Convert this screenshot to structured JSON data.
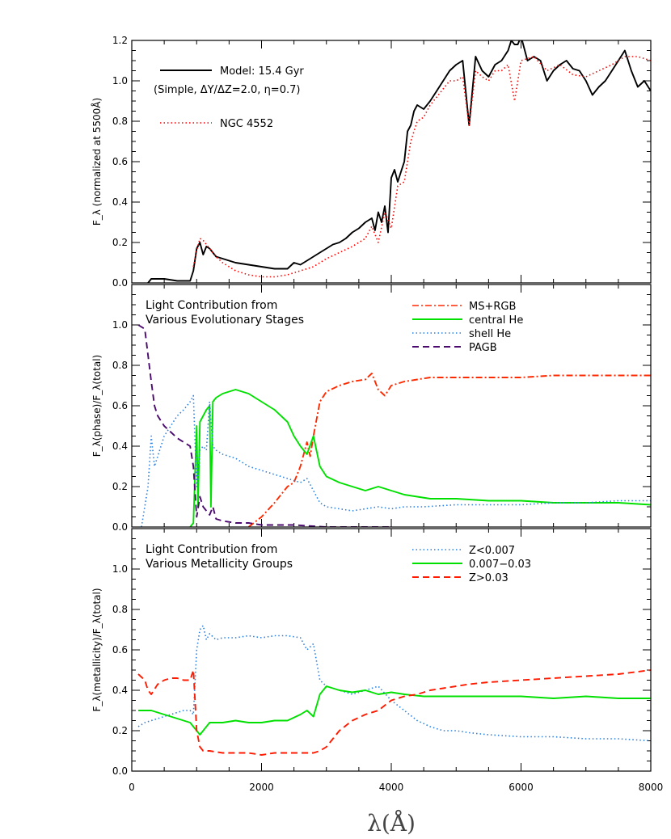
{
  "chart_data": [
    {
      "type": "line",
      "ylabel": "F_λ (normalized at 5500Å)",
      "xlim": [
        0,
        8000
      ],
      "ylim": [
        0,
        1.2
      ],
      "yticks": [
        "0.0",
        "0.2",
        "0.4",
        "0.6",
        "0.8",
        "1.0",
        "1.2"
      ],
      "legend_placement": "top-left",
      "legend_extra": "(Simple, ΔY/ΔZ=2.0, η=0.7)",
      "series": [
        {
          "name": "Model: 15.4 Gyr",
          "color": "#000000",
          "dash": "solid",
          "x": [
            250,
            300,
            500,
            700,
            900,
            950,
            1000,
            1050,
            1100,
            1150,
            1200,
            1250,
            1300,
            1400,
            1600,
            1800,
            2000,
            2200,
            2400,
            2500,
            2600,
            2700,
            2800,
            2900,
            3000,
            3100,
            3200,
            3300,
            3400,
            3500,
            3600,
            3700,
            3750,
            3800,
            3850,
            3900,
            3950,
            4000,
            4050,
            4100,
            4150,
            4200,
            4250,
            4300,
            4350,
            4400,
            4500,
            4600,
            4700,
            4800,
            4900,
            5000,
            5100,
            5200,
            5300,
            5400,
            5500,
            5600,
            5700,
            5800,
            5850,
            5900,
            5950,
            6000,
            6100,
            6200,
            6300,
            6400,
            6500,
            6600,
            6700,
            6800,
            6900,
            7000,
            7100,
            7200,
            7300,
            7400,
            7500,
            7600,
            7700,
            7800,
            7900,
            8000
          ],
          "y": [
            0.0,
            0.02,
            0.02,
            0.01,
            0.01,
            0.06,
            0.17,
            0.2,
            0.14,
            0.18,
            0.17,
            0.15,
            0.13,
            0.12,
            0.1,
            0.09,
            0.08,
            0.07,
            0.07,
            0.1,
            0.09,
            0.11,
            0.13,
            0.15,
            0.17,
            0.19,
            0.2,
            0.22,
            0.25,
            0.27,
            0.3,
            0.32,
            0.26,
            0.35,
            0.3,
            0.38,
            0.25,
            0.52,
            0.56,
            0.5,
            0.55,
            0.6,
            0.75,
            0.78,
            0.85,
            0.88,
            0.86,
            0.9,
            0.95,
            1.0,
            1.05,
            1.08,
            1.1,
            0.78,
            1.12,
            1.05,
            1.02,
            1.08,
            1.1,
            1.15,
            1.2,
            1.18,
            1.18,
            1.22,
            1.1,
            1.12,
            1.1,
            1.0,
            1.05,
            1.08,
            1.1,
            1.06,
            1.05,
            1.0,
            0.93,
            0.97,
            1.0,
            1.05,
            1.1,
            1.15,
            1.05,
            0.97,
            1.0,
            0.95
          ]
        },
        {
          "name": "NGC 4552",
          "color": "#ff0000",
          "dash": "dotted",
          "x": [
            950,
            1000,
            1050,
            1100,
            1150,
            1200,
            1300,
            1400,
            1600,
            1800,
            2000,
            2200,
            2400,
            2600,
            2800,
            3000,
            3200,
            3400,
            3600,
            3700,
            3800,
            3900,
            4000,
            4100,
            4200,
            4300,
            4400,
            4500,
            4600,
            4700,
            4800,
            4900,
            5000,
            5100,
            5200,
            5300,
            5400,
            5500,
            5600,
            5700,
            5800,
            5900,
            6000,
            6200,
            6400,
            6600,
            6800,
            7000,
            7200,
            7400,
            7600,
            7800,
            8000
          ],
          "y": [
            0.08,
            0.16,
            0.22,
            0.21,
            0.19,
            0.17,
            0.13,
            0.1,
            0.06,
            0.04,
            0.03,
            0.03,
            0.04,
            0.06,
            0.08,
            0.12,
            0.15,
            0.18,
            0.22,
            0.28,
            0.2,
            0.35,
            0.27,
            0.48,
            0.5,
            0.7,
            0.8,
            0.82,
            0.88,
            0.92,
            0.96,
            1.0,
            1.0,
            1.02,
            0.78,
            1.05,
            1.02,
            1.0,
            1.05,
            1.05,
            1.08,
            0.9,
            1.1,
            1.12,
            1.05,
            1.08,
            1.03,
            1.02,
            1.05,
            1.08,
            1.12,
            1.12,
            1.1
          ]
        }
      ]
    },
    {
      "type": "line",
      "ylabel": "F_λ(phase)/F_λ(total)",
      "xlim": [
        0,
        8000
      ],
      "ylim": [
        0,
        1.2
      ],
      "yticks": [
        "0.0",
        "0.2",
        "0.4",
        "0.6",
        "0.8",
        "1.0"
      ],
      "title_lines": [
        "Light Contribution from",
        "Various Evolutionary Stages"
      ],
      "legend_placement": "top-right",
      "series": [
        {
          "name": "MS+RGB",
          "color": "#ff2a00",
          "dash": "dashdot",
          "x": [
            1800,
            2000,
            2200,
            2400,
            2500,
            2600,
            2700,
            2750,
            2800,
            2900,
            3000,
            3200,
            3400,
            3600,
            3700,
            3800,
            3900,
            4000,
            4200,
            4400,
            4600,
            5000,
            5500,
            6000,
            6500,
            7000,
            7500,
            8000
          ],
          "y": [
            0.0,
            0.05,
            0.12,
            0.2,
            0.22,
            0.3,
            0.42,
            0.35,
            0.45,
            0.62,
            0.67,
            0.7,
            0.72,
            0.73,
            0.76,
            0.68,
            0.65,
            0.7,
            0.72,
            0.73,
            0.74,
            0.74,
            0.74,
            0.74,
            0.75,
            0.75,
            0.75,
            0.75
          ]
        },
        {
          "name": "central He",
          "color": "#00e000",
          "dash": "solid",
          "x": [
            900,
            950,
            1000,
            1020,
            1050,
            1100,
            1150,
            1200,
            1220,
            1250,
            1300,
            1400,
            1600,
            1800,
            2000,
            2200,
            2400,
            2500,
            2600,
            2700,
            2800,
            2900,
            3000,
            3200,
            3400,
            3600,
            3800,
            4000,
            4200,
            4400,
            4600,
            5000,
            5500,
            6000,
            6500,
            7000,
            7500,
            8000
          ],
          "y": [
            0.0,
            0.02,
            0.5,
            0.1,
            0.52,
            0.55,
            0.58,
            0.6,
            0.1,
            0.62,
            0.64,
            0.66,
            0.68,
            0.66,
            0.62,
            0.58,
            0.52,
            0.45,
            0.4,
            0.36,
            0.45,
            0.3,
            0.25,
            0.22,
            0.2,
            0.18,
            0.2,
            0.18,
            0.16,
            0.15,
            0.14,
            0.14,
            0.13,
            0.13,
            0.12,
            0.12,
            0.12,
            0.11
          ]
        },
        {
          "name": "shell He",
          "color": "#2a7fe0",
          "dash": "dotted",
          "x": [
            150,
            250,
            300,
            350,
            400,
            500,
            600,
            700,
            800,
            900,
            950,
            1000,
            1050,
            1100,
            1150,
            1200,
            1250,
            1300,
            1400,
            1600,
            1800,
            2000,
            2200,
            2400,
            2600,
            2700,
            2800,
            2900,
            3000,
            3200,
            3400,
            3600,
            3800,
            4000,
            4200,
            4500,
            5000,
            5500,
            6000,
            6500,
            7000,
            7500,
            8000
          ],
          "y": [
            0.0,
            0.2,
            0.45,
            0.3,
            0.35,
            0.45,
            0.5,
            0.55,
            0.58,
            0.62,
            0.65,
            0.2,
            0.38,
            0.4,
            0.38,
            0.62,
            0.4,
            0.38,
            0.36,
            0.34,
            0.3,
            0.28,
            0.26,
            0.24,
            0.22,
            0.24,
            0.18,
            0.12,
            0.1,
            0.09,
            0.08,
            0.09,
            0.1,
            0.09,
            0.1,
            0.1,
            0.11,
            0.11,
            0.11,
            0.12,
            0.12,
            0.13,
            0.13
          ]
        },
        {
          "name": "PAGB",
          "color": "#4b0a6e",
          "dash": "dashed",
          "x": [
            100,
            200,
            250,
            300,
            350,
            400,
            500,
            600,
            700,
            800,
            900,
            950,
            1000,
            1050,
            1100,
            1150,
            1200,
            1250,
            1300,
            1400,
            1600,
            1800,
            2000,
            2500,
            3000,
            3500,
            4000
          ],
          "y": [
            1.0,
            0.98,
            0.85,
            0.72,
            0.6,
            0.55,
            0.5,
            0.47,
            0.44,
            0.42,
            0.4,
            0.3,
            0.05,
            0.15,
            0.1,
            0.08,
            0.06,
            0.1,
            0.04,
            0.03,
            0.02,
            0.02,
            0.01,
            0.01,
            0.0,
            0.0,
            0.0
          ]
        }
      ]
    },
    {
      "type": "line",
      "ylabel": "F_λ(metallicity)/F_λ(total)",
      "xlabel": "λ(Å)",
      "xlim": [
        0,
        8000
      ],
      "ylim": [
        0,
        1.2
      ],
      "xticks": [
        "0",
        "2000",
        "4000",
        "6000",
        "8000"
      ],
      "yticks": [
        "0.0",
        "0.2",
        "0.4",
        "0.6",
        "0.8",
        "1.0"
      ],
      "title_lines": [
        "Light Contribution from",
        "Various Metallicity Groups"
      ],
      "legend_placement": "top-right",
      "series": [
        {
          "name": "Z<0.007",
          "color": "#2a7fe0",
          "dash": "dotted",
          "x": [
            100,
            200,
            300,
            400,
            500,
            600,
            700,
            800,
            900,
            950,
            1000,
            1050,
            1100,
            1150,
            1200,
            1300,
            1400,
            1600,
            1800,
            2000,
            2200,
            2400,
            2600,
            2700,
            2800,
            2900,
            3000,
            3200,
            3400,
            3600,
            3800,
            4000,
            4200,
            4400,
            4600,
            4800,
            5000,
            5200,
            5500,
            6000,
            6500,
            7000,
            7500,
            8000
          ],
          "y": [
            0.22,
            0.24,
            0.25,
            0.26,
            0.27,
            0.28,
            0.29,
            0.3,
            0.3,
            0.28,
            0.6,
            0.7,
            0.72,
            0.65,
            0.68,
            0.65,
            0.66,
            0.66,
            0.67,
            0.66,
            0.67,
            0.67,
            0.66,
            0.6,
            0.63,
            0.45,
            0.42,
            0.4,
            0.38,
            0.4,
            0.42,
            0.35,
            0.3,
            0.25,
            0.22,
            0.2,
            0.2,
            0.19,
            0.18,
            0.17,
            0.17,
            0.16,
            0.16,
            0.15
          ]
        },
        {
          "name": "0.007−0.03",
          "color": "#00e000",
          "dash": "solid",
          "x": [
            100,
            200,
            300,
            400,
            500,
            600,
            700,
            800,
            900,
            950,
            1000,
            1050,
            1100,
            1200,
            1300,
            1400,
            1600,
            1800,
            2000,
            2200,
            2400,
            2600,
            2700,
            2800,
            2900,
            3000,
            3200,
            3400,
            3600,
            3800,
            4000,
            4200,
            4500,
            5000,
            5500,
            6000,
            6500,
            7000,
            7500,
            8000
          ],
          "y": [
            0.3,
            0.3,
            0.3,
            0.29,
            0.28,
            0.27,
            0.26,
            0.25,
            0.24,
            0.22,
            0.2,
            0.18,
            0.2,
            0.24,
            0.24,
            0.24,
            0.25,
            0.24,
            0.24,
            0.25,
            0.25,
            0.28,
            0.3,
            0.27,
            0.38,
            0.42,
            0.4,
            0.39,
            0.4,
            0.38,
            0.39,
            0.38,
            0.37,
            0.37,
            0.37,
            0.37,
            0.36,
            0.37,
            0.36,
            0.36
          ]
        },
        {
          "name": "Z>0.03",
          "color": "#ff1a00",
          "dash": "dashed",
          "x": [
            100,
            200,
            250,
            300,
            400,
            500,
            600,
            700,
            800,
            900,
            950,
            1000,
            1050,
            1100,
            1200,
            1400,
            1600,
            1800,
            2000,
            2200,
            2400,
            2600,
            2800,
            2900,
            3000,
            3200,
            3400,
            3600,
            3800,
            4000,
            4200,
            4400,
            4600,
            4800,
            5000,
            5200,
            5500,
            6000,
            6500,
            7000,
            7500,
            8000
          ],
          "y": [
            0.48,
            0.45,
            0.4,
            0.38,
            0.43,
            0.45,
            0.46,
            0.46,
            0.45,
            0.45,
            0.5,
            0.2,
            0.12,
            0.1,
            0.1,
            0.09,
            0.09,
            0.09,
            0.08,
            0.09,
            0.09,
            0.09,
            0.09,
            0.1,
            0.12,
            0.2,
            0.25,
            0.28,
            0.3,
            0.35,
            0.37,
            0.38,
            0.4,
            0.41,
            0.42,
            0.43,
            0.44,
            0.45,
            0.46,
            0.47,
            0.48,
            0.5
          ]
        }
      ]
    }
  ]
}
